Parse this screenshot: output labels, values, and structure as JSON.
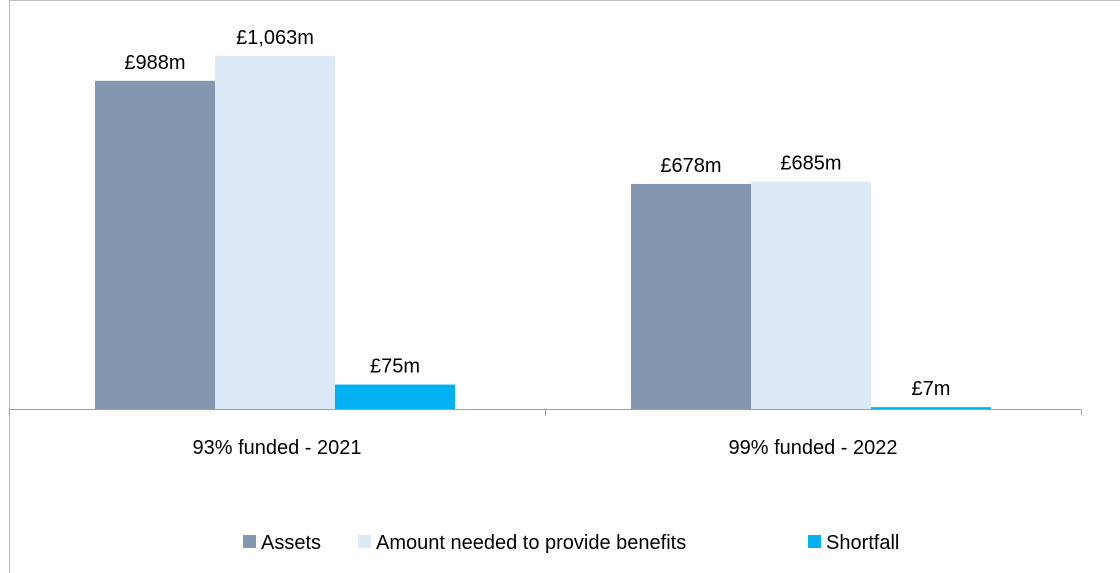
{
  "chart_data": {
    "type": "bar",
    "categories": [
      "93% funded - 2021",
      "99% funded - 2022"
    ],
    "series": [
      {
        "name": "Assets",
        "color": "#8497b0",
        "values": [
          988,
          678
        ],
        "labels": [
          "£988m",
          "£678m"
        ]
      },
      {
        "name": "Amount needed to provide benefits",
        "color": "#dce9f6",
        "values": [
          1063,
          685
        ],
        "labels": [
          "£1,063m",
          "£685m"
        ]
      },
      {
        "name": "Shortfall",
        "color": "#00b0f0",
        "values": [
          75,
          7
        ],
        "labels": [
          "£75m",
          "£7m"
        ]
      }
    ],
    "title": "",
    "xlabel": "",
    "ylabel": "",
    "ylim": [
      0,
      1200
    ],
    "grid": false,
    "legend_position": "bottom"
  }
}
